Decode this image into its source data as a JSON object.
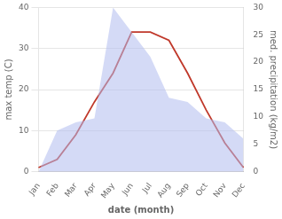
{
  "chart_data": {
    "type": "line",
    "categories": [
      "Jan",
      "Feb",
      "Mar",
      "Apr",
      "May",
      "Jun",
      "Jul",
      "Aug",
      "Sep",
      "Oct",
      "Nov",
      "Dec"
    ],
    "series": [
      {
        "type": "area",
        "color": "#b0bbee",
        "values": [
          0,
          10,
          12,
          13,
          40,
          34,
          28,
          18,
          17,
          13,
          12,
          8
        ]
      },
      {
        "type": "line",
        "color": "#c0392b",
        "values": [
          1,
          3,
          9,
          17,
          24,
          34,
          34,
          32,
          24,
          15,
          7,
          1
        ]
      }
    ],
    "xlabel": "date (month)",
    "ylabel": "max temp (C)",
    "y2label": "med. precipitation (kg/m2)",
    "ylim": [
      0,
      40
    ],
    "yticks": [
      0,
      10,
      20,
      30,
      40
    ],
    "y2lim": [
      0,
      30
    ],
    "y2ticks": [
      0,
      5,
      10,
      15,
      20,
      25,
      30
    ],
    "grid": true
  }
}
